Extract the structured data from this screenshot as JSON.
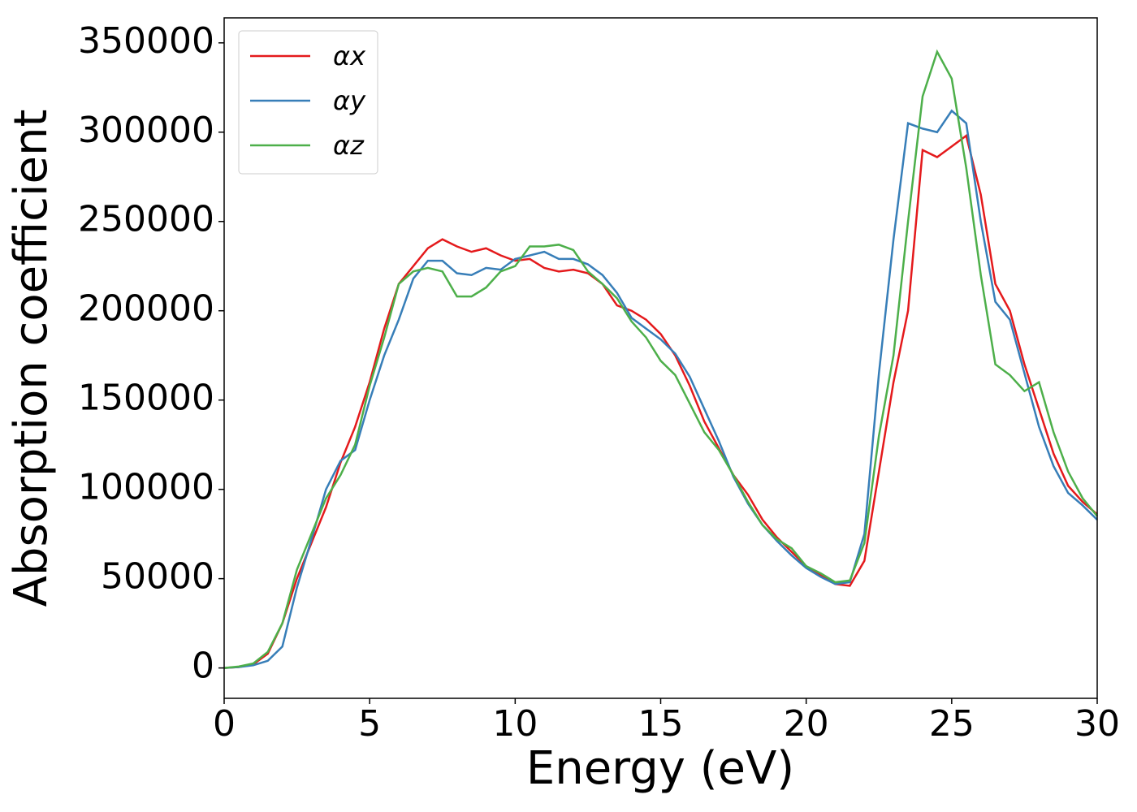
{
  "chart_data": {
    "type": "line",
    "x_label": "Energy (eV)",
    "y_label": "Absorption coefficient",
    "x": [
      0,
      0.5,
      1,
      1.5,
      2,
      2.5,
      3,
      3.5,
      4,
      4.5,
      5,
      5.5,
      6,
      6.5,
      7,
      7.5,
      8,
      8.5,
      9,
      9.5,
      10,
      10.5,
      11,
      11.5,
      12,
      12.5,
      13,
      13.5,
      14,
      14.5,
      15,
      15.5,
      16,
      16.5,
      17,
      17.5,
      18,
      18.5,
      19,
      19.5,
      20,
      20.5,
      21,
      21.5,
      22,
      22.5,
      23,
      23.5,
      24,
      24.5,
      25,
      25.5,
      26,
      26.5,
      27,
      27.5,
      28,
      28.5,
      29,
      29.5,
      30
    ],
    "series": [
      {
        "name": "αx",
        "color": "#e41a1c",
        "values": [
          0,
          500,
          2000,
          8000,
          25000,
          50000,
          70000,
          90000,
          115000,
          135000,
          160000,
          190000,
          215000,
          225000,
          235000,
          240000,
          236000,
          233000,
          235000,
          231000,
          228000,
          229000,
          224000,
          222000,
          223000,
          221000,
          215000,
          203000,
          200000,
          195000,
          187000,
          175000,
          158000,
          138000,
          123000,
          108000,
          97000,
          83000,
          73000,
          65000,
          57000,
          52000,
          47000,
          46000,
          60000,
          110000,
          160000,
          200000,
          290000,
          286000,
          292000,
          298000,
          265000,
          215000,
          200000,
          170000,
          145000,
          120000,
          102000,
          93000,
          86000
        ]
      },
      {
        "name": "αy",
        "color": "#377eb8",
        "values": [
          0,
          500,
          1500,
          4000,
          12000,
          45000,
          72000,
          100000,
          116000,
          122000,
          150000,
          175000,
          195000,
          218000,
          228000,
          228000,
          221000,
          220000,
          224000,
          223000,
          229000,
          231000,
          233000,
          229000,
          229000,
          226000,
          220000,
          210000,
          196000,
          190000,
          184000,
          176000,
          163000,
          145000,
          127000,
          107000,
          92000,
          80000,
          71000,
          63000,
          56000,
          51000,
          47000,
          48000,
          75000,
          165000,
          240000,
          305000,
          302000,
          300000,
          312000,
          305000,
          250000,
          205000,
          195000,
          165000,
          135000,
          113000,
          98000,
          91000,
          83000
        ]
      },
      {
        "name": "αz",
        "color": "#4daf4a",
        "values": [
          0,
          800,
          2500,
          9000,
          25000,
          55000,
          75000,
          95000,
          108000,
          125000,
          158000,
          185000,
          215000,
          222000,
          224000,
          222000,
          208000,
          208000,
          213000,
          222000,
          225000,
          236000,
          236000,
          237000,
          234000,
          222000,
          215000,
          207000,
          194000,
          185000,
          172000,
          164000,
          148000,
          132000,
          122000,
          108000,
          93000,
          80000,
          72000,
          67000,
          57000,
          53000,
          48000,
          49000,
          70000,
          130000,
          175000,
          250000,
          320000,
          345000,
          330000,
          280000,
          220000,
          170000,
          164000,
          155000,
          160000,
          132000,
          110000,
          95000,
          85000
        ]
      }
    ],
    "xlim": [
      0,
      30
    ],
    "xticks": [
      0,
      5,
      10,
      15,
      20,
      25,
      30
    ],
    "ylim": [
      -17000,
      364000
    ],
    "yticks": [
      0,
      50000,
      100000,
      150000,
      200000,
      250000,
      300000,
      350000
    ],
    "legend": "upper left"
  }
}
